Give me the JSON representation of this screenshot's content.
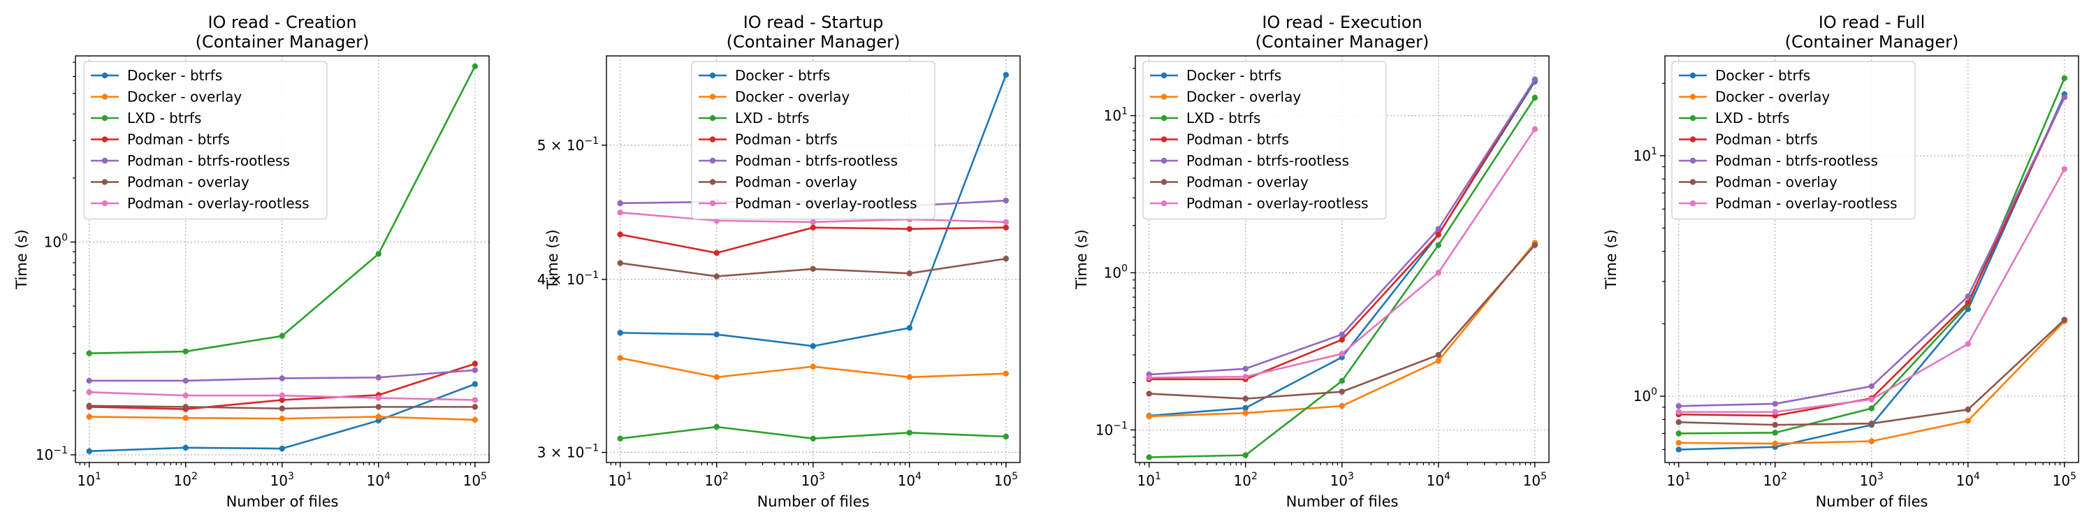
{
  "chart_data": [
    {
      "type": "line",
      "title": "IO read - Creation",
      "subtitle": "(Container Manager)",
      "xlabel": "Number of files",
      "ylabel": "Time (s)",
      "xscale": "log",
      "yscale": "log",
      "xlim": [
        7.2,
        140000
      ],
      "ylim": [
        0.092,
        7.5
      ],
      "grid": true,
      "legend": "top-left",
      "x": [
        10,
        100,
        1000,
        10000,
        100000
      ],
      "xticks": [
        {
          "value": 10,
          "base": "10",
          "exp": "1"
        },
        {
          "value": 100,
          "base": "10",
          "exp": "2"
        },
        {
          "value": 1000,
          "base": "10",
          "exp": "3"
        },
        {
          "value": 10000,
          "base": "10",
          "exp": "4"
        },
        {
          "value": 100000,
          "base": "10",
          "exp": "5"
        }
      ],
      "yticks": [
        {
          "value": 0.1,
          "base": "10",
          "exp": "−1"
        },
        {
          "value": 1,
          "base": "10",
          "exp": "0"
        }
      ],
      "series": [
        {
          "name": "Docker - btrfs",
          "color": "#1f77b4",
          "values": [
            0.104,
            0.108,
            0.107,
            0.145,
            0.215
          ]
        },
        {
          "name": "Docker - overlay",
          "color": "#ff7f0e",
          "values": [
            0.151,
            0.149,
            0.148,
            0.151,
            0.146
          ]
        },
        {
          "name": "LXD - btrfs",
          "color": "#2ca02c",
          "values": [
            0.3,
            0.306,
            0.362,
            0.88,
            6.7
          ]
        },
        {
          "name": "Podman - btrfs",
          "color": "#d62728",
          "values": [
            0.168,
            0.164,
            0.181,
            0.191,
            0.268
          ]
        },
        {
          "name": "Podman - btrfs-rootless",
          "color": "#9467bd",
          "values": [
            0.223,
            0.223,
            0.229,
            0.231,
            0.25
          ]
        },
        {
          "name": "Podman - overlay",
          "color": "#8c564b",
          "values": [
            0.17,
            0.168,
            0.165,
            0.168,
            0.168
          ]
        },
        {
          "name": "Podman - overlay-rootless",
          "color": "#e377c2",
          "values": [
            0.197,
            0.19,
            0.19,
            0.185,
            0.181
          ]
        }
      ]
    },
    {
      "type": "line",
      "title": "IO read - Startup",
      "subtitle": "(Container Manager)",
      "xlabel": "Number of files",
      "ylabel": "Time (s)",
      "xscale": "log",
      "yscale": "log",
      "xlim": [
        7.2,
        140000
      ],
      "ylim": [
        0.295,
        0.58
      ],
      "grid": true,
      "legend": "top-center",
      "x": [
        10,
        100,
        1000,
        10000,
        100000
      ],
      "xticks": [
        {
          "value": 10,
          "base": "10",
          "exp": "1"
        },
        {
          "value": 100,
          "base": "10",
          "exp": "2"
        },
        {
          "value": 1000,
          "base": "10",
          "exp": "3"
        },
        {
          "value": 10000,
          "base": "10",
          "exp": "4"
        },
        {
          "value": 100000,
          "base": "10",
          "exp": "5"
        }
      ],
      "yticks": [
        {
          "value": 0.3,
          "base": "3 × 10",
          "exp": "−1"
        },
        {
          "value": 0.4,
          "base": "4 × 10",
          "exp": "−1"
        },
        {
          "value": 0.5,
          "base": "5 × 10",
          "exp": "−1"
        }
      ],
      "series": [
        {
          "name": "Docker - btrfs",
          "color": "#1f77b4",
          "values": [
            0.366,
            0.365,
            0.358,
            0.369,
            0.562
          ]
        },
        {
          "name": "Docker - overlay",
          "color": "#ff7f0e",
          "values": [
            0.351,
            0.34,
            0.346,
            0.34,
            0.342
          ]
        },
        {
          "name": "LXD - btrfs",
          "color": "#2ca02c",
          "values": [
            0.307,
            0.313,
            0.307,
            0.31,
            0.308
          ]
        },
        {
          "name": "Podman - btrfs",
          "color": "#d62728",
          "values": [
            0.431,
            0.418,
            0.436,
            0.435,
            0.436
          ]
        },
        {
          "name": "Podman - btrfs-rootless",
          "color": "#9467bd",
          "values": [
            0.454,
            0.455,
            0.455,
            0.452,
            0.456
          ]
        },
        {
          "name": "Podman - overlay",
          "color": "#8c564b",
          "values": [
            0.411,
            0.402,
            0.407,
            0.404,
            0.414
          ]
        },
        {
          "name": "Podman - overlay-rootless",
          "color": "#e377c2",
          "values": [
            0.447,
            0.441,
            0.44,
            0.442,
            0.44
          ]
        }
      ]
    },
    {
      "type": "line",
      "title": "IO read - Execution",
      "subtitle": "(Container Manager)",
      "xlabel": "Number of files",
      "ylabel": "Time (s)",
      "xscale": "log",
      "yscale": "log",
      "xlim": [
        7.2,
        140000
      ],
      "ylim": [
        0.062,
        24
      ],
      "grid": true,
      "legend": "top-left",
      "x": [
        10,
        100,
        1000,
        10000,
        100000
      ],
      "xticks": [
        {
          "value": 10,
          "base": "10",
          "exp": "1"
        },
        {
          "value": 100,
          "base": "10",
          "exp": "2"
        },
        {
          "value": 1000,
          "base": "10",
          "exp": "3"
        },
        {
          "value": 10000,
          "base": "10",
          "exp": "4"
        },
        {
          "value": 100000,
          "base": "10",
          "exp": "5"
        }
      ],
      "yticks": [
        {
          "value": 0.1,
          "base": "10",
          "exp": "−1"
        },
        {
          "value": 1,
          "base": "10",
          "exp": "0"
        },
        {
          "value": 10,
          "base": "10",
          "exp": "1"
        }
      ],
      "series": [
        {
          "name": "Docker - btrfs",
          "color": "#1f77b4",
          "values": [
            0.123,
            0.138,
            0.29,
            1.75,
            16.5
          ]
        },
        {
          "name": "Docker - overlay",
          "color": "#ff7f0e",
          "values": [
            0.122,
            0.128,
            0.142,
            0.275,
            1.55
          ]
        },
        {
          "name": "LXD - btrfs",
          "color": "#2ca02c",
          "values": [
            0.067,
            0.069,
            0.205,
            1.5,
            13.0
          ]
        },
        {
          "name": "Podman - btrfs",
          "color": "#d62728",
          "values": [
            0.21,
            0.21,
            0.375,
            1.75,
            17.0
          ]
        },
        {
          "name": "Podman - btrfs-rootless",
          "color": "#9467bd",
          "values": [
            0.225,
            0.245,
            0.405,
            1.9,
            17.0
          ]
        },
        {
          "name": "Podman - overlay",
          "color": "#8c564b",
          "values": [
            0.17,
            0.158,
            0.175,
            0.3,
            1.5
          ]
        },
        {
          "name": "Podman - overlay-rootless",
          "color": "#e377c2",
          "values": [
            0.215,
            0.218,
            0.305,
            1.0,
            8.2
          ]
        }
      ]
    },
    {
      "type": "line",
      "title": "IO read - Full",
      "subtitle": "(Container Manager)",
      "xlabel": "Number of files",
      "ylabel": "Time (s)",
      "xscale": "log",
      "yscale": "log",
      "xlim": [
        7.2,
        140000
      ],
      "ylim": [
        0.53,
        26
      ],
      "grid": true,
      "legend": "top-left",
      "x": [
        10,
        100,
        1000,
        10000,
        100000
      ],
      "xticks": [
        {
          "value": 10,
          "base": "10",
          "exp": "1"
        },
        {
          "value": 100,
          "base": "10",
          "exp": "2"
        },
        {
          "value": 1000,
          "base": "10",
          "exp": "3"
        },
        {
          "value": 10000,
          "base": "10",
          "exp": "4"
        },
        {
          "value": 100000,
          "base": "10",
          "exp": "5"
        }
      ],
      "yticks": [
        {
          "value": 1,
          "base": "10",
          "exp": "0"
        },
        {
          "value": 10,
          "base": "10",
          "exp": "1"
        }
      ],
      "series": [
        {
          "name": "Docker - btrfs",
          "color": "#1f77b4",
          "values": [
            0.6,
            0.615,
            0.76,
            2.3,
            18.0
          ]
        },
        {
          "name": "Docker - overlay",
          "color": "#ff7f0e",
          "values": [
            0.64,
            0.635,
            0.65,
            0.79,
            2.05
          ]
        },
        {
          "name": "LXD - btrfs",
          "color": "#2ca02c",
          "values": [
            0.7,
            0.705,
            0.89,
            2.4,
            21.0
          ]
        },
        {
          "name": "Podman - btrfs",
          "color": "#d62728",
          "values": [
            0.84,
            0.83,
            0.98,
            2.45,
            17.5
          ]
        },
        {
          "name": "Podman - btrfs-rootless",
          "color": "#9467bd",
          "values": [
            0.91,
            0.93,
            1.1,
            2.6,
            17.5
          ]
        },
        {
          "name": "Podman - overlay",
          "color": "#8c564b",
          "values": [
            0.78,
            0.76,
            0.77,
            0.88,
            2.08
          ]
        },
        {
          "name": "Podman - overlay-rootless",
          "color": "#e377c2",
          "values": [
            0.86,
            0.86,
            0.97,
            1.65,
            8.8
          ]
        }
      ]
    }
  ]
}
